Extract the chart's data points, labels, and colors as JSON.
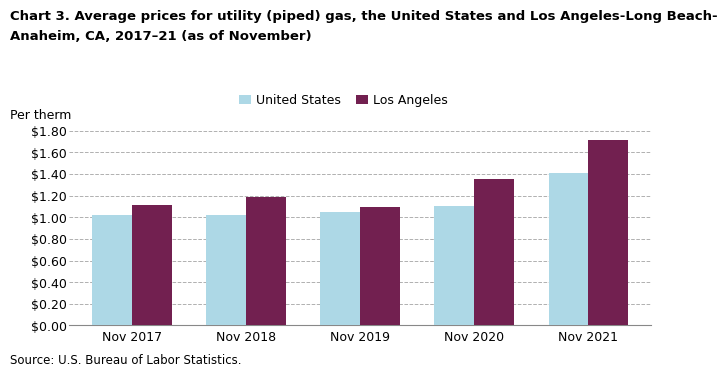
{
  "title_line1": "Chart 3. Average prices for utility (piped) gas, the United States and Los Angeles-Long Beach-",
  "title_line2": "Anaheim, CA, 2017–21 (as of November)",
  "ylabel": "Per therm",
  "source": "Source: U.S. Bureau of Labor Statistics.",
  "categories": [
    "Nov 2017",
    "Nov 2018",
    "Nov 2019",
    "Nov 2020",
    "Nov 2021"
  ],
  "us_values": [
    1.02,
    1.02,
    1.05,
    1.1,
    1.41
  ],
  "la_values": [
    1.11,
    1.19,
    1.09,
    1.35,
    1.71
  ],
  "us_color": "#add8e6",
  "la_color": "#722050",
  "us_label": "United States",
  "la_label": "Los Angeles",
  "ylim": [
    0.0,
    1.8
  ],
  "yticks": [
    0.0,
    0.2,
    0.4,
    0.6,
    0.8,
    1.0,
    1.2,
    1.4,
    1.6,
    1.8
  ],
  "bar_width": 0.35,
  "background_color": "#ffffff",
  "grid_color": "#b0b0b0",
  "title_fontsize": 9.5,
  "axis_fontsize": 9,
  "legend_fontsize": 9,
  "source_fontsize": 8.5
}
